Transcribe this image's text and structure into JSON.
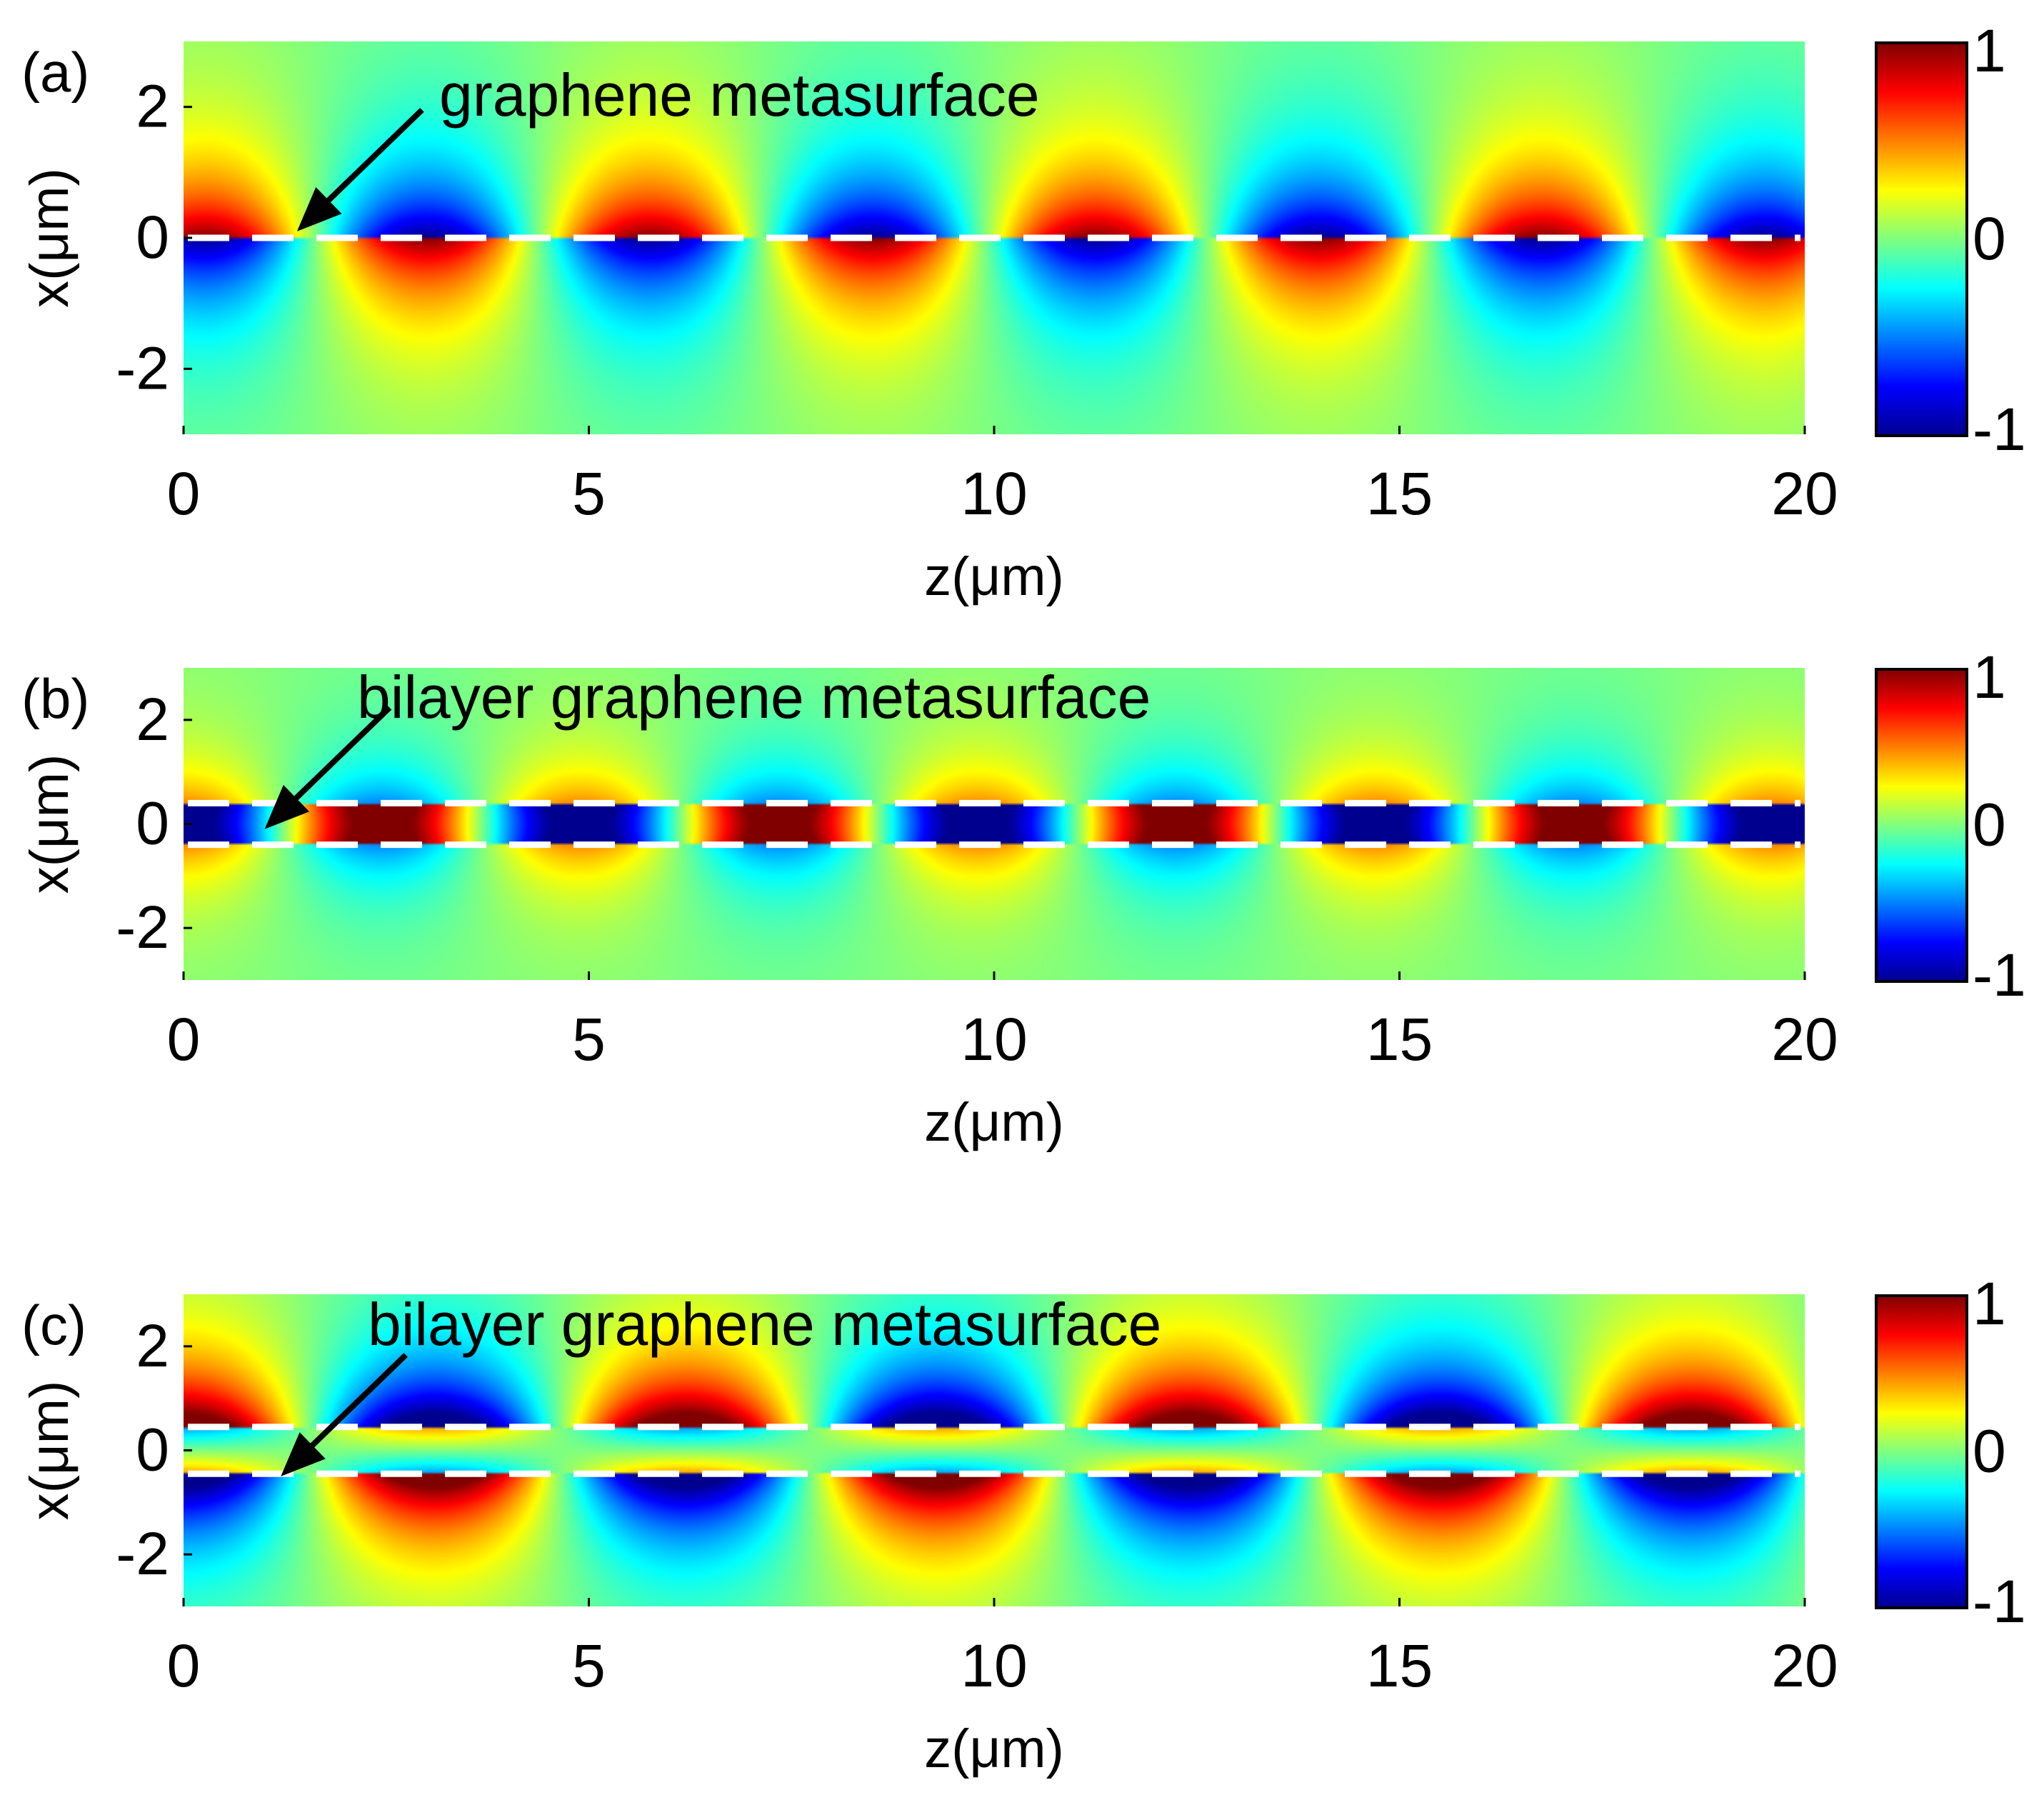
{
  "figure": {
    "description_units": "field amplitude normalized to [-1, 1]"
  },
  "colormap": {
    "name": "jet",
    "stops": [
      "#00008f",
      "#0000ff",
      "#00ffff",
      "#ffff00",
      "#ff0000",
      "#800000"
    ],
    "dash_color": "#ffffff",
    "arrow_color": "#000000"
  },
  "chart_data": [
    {
      "type": "heatmap",
      "panel_label": "(a)",
      "annotation": "graphene metasurface",
      "xlabel": "z(μm)",
      "ylabel": "x(μm)",
      "xlim": [
        0,
        20
      ],
      "ylim": [
        -3,
        3
      ],
      "xticks": [
        0,
        5,
        10,
        15,
        20
      ],
      "yticks": [
        2,
        0,
        -2
      ],
      "xtick_labels": [
        "0",
        "5",
        "10",
        "15",
        "20"
      ],
      "ytick_labels": [
        "2",
        "0",
        "-2"
      ],
      "colorbar": {
        "min": -1,
        "max": 1,
        "tick_labels": [
          "1",
          "0",
          "-1"
        ]
      },
      "graphene_layers_x": [
        0
      ],
      "field": {
        "period_z": 5.5,
        "phase_z": 0.25,
        "decay_length": 1.1,
        "mode": "antisymmetric"
      },
      "arrow_target": {
        "z": 1.4,
        "x": 0.1
      }
    },
    {
      "type": "heatmap",
      "panel_label": "(b)",
      "annotation": "bilayer graphene metasurface",
      "xlabel": "z(μm)",
      "ylabel": "x(μm)",
      "xlim": [
        0,
        20
      ],
      "ylim": [
        -3,
        3
      ],
      "xticks": [
        0,
        5,
        10,
        15,
        20
      ],
      "yticks": [
        2,
        0,
        -2
      ],
      "xtick_labels": [
        "0",
        "5",
        "10",
        "15",
        "20"
      ],
      "ytick_labels": [
        "2",
        "0",
        "-2"
      ],
      "colorbar": {
        "min": -1,
        "max": 1,
        "tick_labels": [
          "1",
          "0",
          "-1"
        ]
      },
      "graphene_layers_x": [
        0.4,
        -0.4
      ],
      "field": {
        "period_z": 4.9,
        "phase_z": 0.0,
        "decay_length": 0.95,
        "mode": "antisymmetric-pair"
      },
      "arrow_target": {
        "z": 1.0,
        "x": -0.1
      }
    },
    {
      "type": "heatmap",
      "panel_label": "(c)",
      "annotation": "bilayer graphene metasurface",
      "xlabel": "z(μm)",
      "ylabel": "x(μm)",
      "xlim": [
        0,
        20
      ],
      "ylim": [
        -3,
        3
      ],
      "xticks": [
        0,
        5,
        10,
        15,
        20
      ],
      "yticks": [
        2,
        0,
        -2
      ],
      "xtick_labels": [
        "0",
        "5",
        "10",
        "15",
        "20"
      ],
      "ytick_labels": [
        "2",
        "0",
        "-2"
      ],
      "colorbar": {
        "min": -1,
        "max": 1,
        "tick_labels": [
          "1",
          "0",
          "-1"
        ]
      },
      "graphene_layers_x": [
        0.45,
        -0.45
      ],
      "field": {
        "period_z": 6.2,
        "phase_z": 0.0,
        "decay_length": 1.2,
        "mode": "symmetric-pair"
      },
      "arrow_target": {
        "z": 1.2,
        "x": -0.5
      }
    }
  ]
}
